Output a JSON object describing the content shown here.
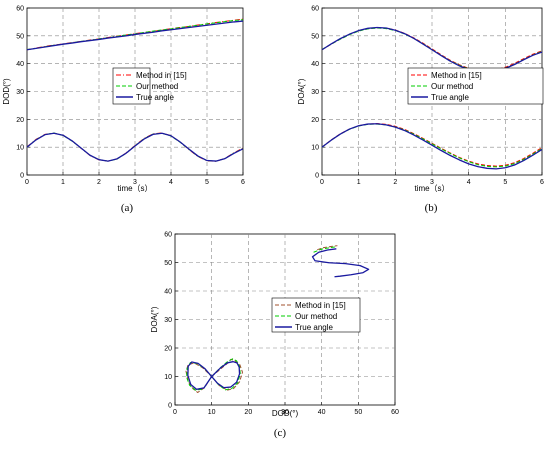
{
  "chart_data": [
    {
      "type": "line",
      "panel_label": "(a)",
      "xlabel": "time（s）",
      "ylabel": "DOD(°)",
      "xlim": [
        0,
        6
      ],
      "ylim": [
        0,
        60
      ],
      "xticks": [
        0,
        1,
        2,
        3,
        4,
        5,
        6
      ],
      "yticks": [
        0,
        10,
        20,
        30,
        40,
        50,
        60
      ],
      "grid": true,
      "legend_position": "center-right",
      "x": [
        0,
        0.25,
        0.5,
        0.75,
        1,
        1.25,
        1.5,
        1.75,
        2,
        2.25,
        2.5,
        2.75,
        3,
        3.25,
        3.5,
        3.75,
        4,
        4.25,
        4.5,
        4.75,
        5,
        5.25,
        5.5,
        5.75,
        6
      ],
      "series": [
        {
          "name": "Method in [15]",
          "color": "#ff0000",
          "dash": "dashdot",
          "curves": [
            [
              45.0,
              45.6,
              46.2,
              46.7,
              47.1,
              47.6,
              48.0,
              48.5,
              48.9,
              49.4,
              49.9,
              50.3,
              50.8,
              51.2,
              51.6,
              52.1,
              52.6,
              53.0,
              53.4,
              53.9,
              54.3,
              54.8,
              55.2,
              55.6,
              56.0
            ],
            [
              10.1,
              12.8,
              14.6,
              15.0,
              14.3,
              12.3,
              9.6,
              7.0,
              5.4,
              5.0,
              5.8,
              7.9,
              10.6,
              13.1,
              14.8,
              15.1,
              14.1,
              11.9,
              9.1,
              6.6,
              5.1,
              4.9,
              6.0,
              8.0,
              9.7
            ]
          ]
        },
        {
          "name": "Our method",
          "color": "#00cc00",
          "dash": "dash",
          "curves": [
            [
              45.1,
              45.5,
              46.1,
              46.6,
              47.0,
              47.5,
              48.0,
              48.4,
              48.9,
              49.3,
              49.8,
              50.3,
              50.7,
              51.2,
              51.7,
              52.1,
              52.5,
              53.0,
              53.4,
              53.8,
              54.3,
              54.7,
              55.1,
              55.5,
              55.8
            ],
            [
              10.0,
              12.7,
              14.5,
              15.1,
              14.2,
              12.2,
              9.7,
              7.1,
              5.5,
              5.0,
              5.7,
              7.8,
              10.5,
              13.0,
              14.7,
              15.0,
              14.0,
              11.8,
              9.2,
              6.7,
              5.2,
              5.0,
              5.9,
              7.9,
              9.5
            ]
          ]
        },
        {
          "name": "True angle",
          "color": "#1a1aa0",
          "dash": "solid",
          "curves": [
            [
              45.0,
              45.5,
              46.0,
              46.5,
              47.0,
              47.4,
              47.9,
              48.3,
              48.7,
              49.2,
              49.6,
              50.0,
              50.5,
              50.9,
              51.3,
              51.8,
              52.2,
              52.6,
              53.0,
              53.4,
              53.8,
              54.2,
              54.6,
              55.0,
              55.3
            ],
            [
              10.0,
              12.6,
              14.5,
              15.0,
              14.3,
              12.3,
              9.7,
              7.1,
              5.5,
              5.0,
              5.8,
              7.8,
              10.4,
              12.9,
              14.6,
              15.0,
              14.1,
              11.9,
              9.3,
              6.8,
              5.2,
              5.0,
              5.9,
              7.8,
              9.4
            ]
          ]
        }
      ]
    },
    {
      "type": "line",
      "panel_label": "(b)",
      "xlabel": "time（s）",
      "ylabel": "DOA(°)",
      "xlim": [
        0,
        6
      ],
      "ylim": [
        0,
        60
      ],
      "xticks": [
        0,
        1,
        2,
        3,
        4,
        5,
        6
      ],
      "yticks": [
        0,
        10,
        20,
        30,
        40,
        50,
        60
      ],
      "grid": true,
      "legend_position": "center-right",
      "x": [
        0,
        0.25,
        0.5,
        0.75,
        1,
        1.25,
        1.5,
        1.75,
        2,
        2.25,
        2.5,
        2.75,
        3,
        3.25,
        3.5,
        3.75,
        4,
        4.25,
        4.5,
        4.75,
        5,
        5.25,
        5.5,
        5.75,
        6
      ],
      "series": [
        {
          "name": "Method in [15]",
          "color": "#ff0000",
          "dash": "dash",
          "curves": [
            [
              45.0,
              47.0,
              48.9,
              50.5,
              51.8,
              52.6,
              52.9,
              52.8,
              52.1,
              50.9,
              49.3,
              47.4,
              45.3,
              43.2,
              41.2,
              39.6,
              38.3,
              37.6,
              37.4,
              37.8,
              38.7,
              40.1,
              41.8,
              43.4,
              44.6
            ],
            [
              10.0,
              12.6,
              14.8,
              16.5,
              17.7,
              18.3,
              18.5,
              18.2,
              17.5,
              16.4,
              14.9,
              13.2,
              11.4,
              9.6,
              7.9,
              6.3,
              5.0,
              4.0,
              3.4,
              3.2,
              3.5,
              4.4,
              5.9,
              7.8,
              9.9
            ]
          ]
        },
        {
          "name": "Our method",
          "color": "#00cc00",
          "dash": "dash",
          "curves": [
            [
              45.1,
              47.0,
              48.8,
              50.4,
              51.7,
              52.5,
              52.8,
              52.6,
              51.9,
              50.7,
              49.1,
              47.2,
              45.1,
              43.0,
              41.0,
              39.4,
              38.1,
              37.3,
              37.1,
              37.5,
              38.4,
              39.8,
              41.5,
              43.1,
              44.4
            ],
            [
              10.0,
              12.5,
              14.7,
              16.4,
              17.6,
              18.2,
              18.3,
              18.0,
              17.3,
              16.2,
              14.7,
              13.0,
              11.2,
              9.4,
              7.7,
              6.1,
              4.8,
              3.7,
              3.1,
              2.9,
              3.2,
              4.1,
              5.6,
              7.5,
              9.5
            ]
          ]
        },
        {
          "name": "True angle",
          "color": "#1a1aa0",
          "dash": "solid",
          "curves": [
            [
              45.0,
              47.1,
              49.0,
              50.6,
              51.9,
              52.7,
              53.0,
              52.8,
              52.0,
              50.8,
              49.1,
              47.1,
              45.0,
              42.9,
              40.9,
              39.2,
              37.9,
              37.1,
              36.9,
              37.3,
              38.3,
              39.7,
              41.4,
              43.0,
              44.2
            ],
            [
              10.0,
              12.5,
              14.7,
              16.5,
              17.7,
              18.3,
              18.4,
              18.0,
              17.2,
              16.0,
              14.4,
              12.6,
              10.7,
              8.8,
              7.0,
              5.4,
              4.0,
              3.0,
              2.4,
              2.2,
              2.6,
              3.6,
              5.2,
              7.1,
              9.2
            ]
          ]
        }
      ]
    },
    {
      "type": "line",
      "panel_label": "(c)",
      "xlabel": "DOD(°)",
      "ylabel": "DOA(°)",
      "xlim": [
        0,
        60
      ],
      "ylim": [
        0,
        60
      ],
      "xticks": [
        0,
        10,
        20,
        30,
        40,
        50,
        60
      ],
      "yticks": [
        0,
        10,
        20,
        30,
        40,
        50,
        60
      ],
      "grid": true,
      "legend_position": "center-left",
      "series": [
        {
          "name": "Method in [15]",
          "color": "#a0522d",
          "dash": "dash",
          "curves": [
            [
              [
                10,
                10
              ],
              [
                12.5,
                12.7
              ],
              [
                14.6,
                14.9
              ],
              [
                15.2,
                16.0
              ],
              [
                16.3,
                15.6
              ],
              [
                17.7,
                14.1
              ],
              [
                18.4,
                11.5
              ],
              [
                17.6,
                8.1
              ],
              [
                16.0,
                5.8
              ],
              [
                14.3,
                5.2
              ],
              [
                12.1,
                6.8
              ],
              [
                10.0,
                10.0
              ],
              [
                7.5,
                13.1
              ],
              [
                5.3,
                14.7
              ],
              [
                3.6,
                14.2
              ],
              [
                3.0,
                11.8
              ],
              [
                3.6,
                8.3
              ],
              [
                4.9,
                5.7
              ],
              [
                6.2,
                4.4
              ],
              [
                8.0,
                6.0
              ],
              [
                10,
                10
              ]
            ],
            [
              [
                38.8,
                54.5
              ],
              [
                40.5,
                55.2
              ],
              [
                42.5,
                55.6
              ],
              [
                44.3,
                55.9
              ]
            ]
          ]
        },
        {
          "name": "Our method",
          "color": "#00cc00",
          "dash": "dash",
          "curves": [
            [
              [
                10,
                10
              ],
              [
                12.2,
                12.9
              ],
              [
                14.2,
                15.1
              ],
              [
                15.7,
                16.2
              ],
              [
                16.8,
                15.5
              ],
              [
                17.6,
                13.6
              ],
              [
                17.8,
                11.0
              ],
              [
                17.1,
                7.8
              ],
              [
                15.6,
                5.9
              ],
              [
                13.7,
                5.3
              ],
              [
                11.8,
                7.2
              ],
              [
                10.0,
                10.0
              ],
              [
                8.0,
                12.9
              ],
              [
                5.9,
                14.6
              ],
              [
                4.2,
                14.9
              ],
              [
                3.3,
                12.8
              ],
              [
                3.2,
                9.6
              ],
              [
                4.0,
                6.9
              ],
              [
                5.6,
                5.2
              ],
              [
                7.7,
                5.6
              ],
              [
                10,
                10
              ]
            ],
            [
              [
                37.8,
                53.6
              ],
              [
                40.0,
                54.7
              ],
              [
                42.2,
                55.2
              ],
              [
                44.0,
                55.5
              ]
            ]
          ]
        },
        {
          "name": "True angle",
          "color": "#1a1aa0",
          "dash": "solid",
          "curves": [
            [
              [
                10,
                10
              ],
              [
                12.4,
                13.0
              ],
              [
                14.3,
                14.8
              ],
              [
                15.8,
                15.2
              ],
              [
                16.9,
                14.8
              ],
              [
                17.5,
                13.3
              ],
              [
                17.6,
                10.9
              ],
              [
                16.8,
                8.0
              ],
              [
                15.2,
                6.3
              ],
              [
                13.3,
                6.1
              ],
              [
                11.6,
                7.6
              ],
              [
                10.0,
                10.0
              ],
              [
                8.2,
                12.7
              ],
              [
                6.3,
                14.6
              ],
              [
                4.6,
                15.1
              ],
              [
                3.6,
                13.6
              ],
              [
                3.5,
                10.4
              ],
              [
                4.3,
                7.2
              ],
              [
                5.9,
                5.5
              ],
              [
                7.9,
                6.0
              ],
              [
                10,
                10
              ]
            ],
            [
              [
                44.0,
                54.8
              ],
              [
                41.6,
                54.4
              ],
              [
                39.2,
                53.6
              ],
              [
                37.5,
                52.0
              ],
              [
                38.2,
                50.6
              ],
              [
                42.0,
                49.9
              ],
              [
                46.5,
                49.6
              ],
              [
                50.5,
                48.9
              ],
              [
                52.8,
                47.6
              ],
              [
                51.2,
                46.4
              ],
              [
                48.0,
                45.7
              ],
              [
                45.0,
                45.2
              ],
              [
                43.5,
                45.0
              ]
            ]
          ]
        }
      ]
    }
  ]
}
